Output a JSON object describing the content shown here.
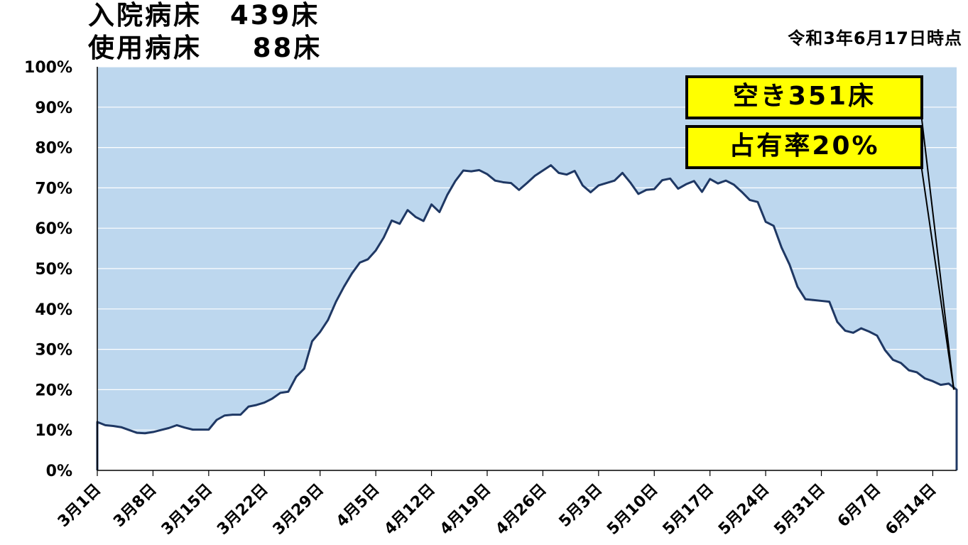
{
  "header": {
    "line1": "入院病床　439床",
    "line2": "使用病床　  88床",
    "as_of": "令和3年6月17日時点"
  },
  "callouts": {
    "free_beds": "空き351床",
    "occupancy": "占有率20%"
  },
  "colors": {
    "plot_bg": "#bdd7ee",
    "line": "#1f3864",
    "callout_bg": "#ffff00"
  },
  "chart_data": {
    "type": "area",
    "ylim": [
      0,
      100
    ],
    "y_unit": "%",
    "yticks": [
      "0%",
      "10%",
      "20%",
      "30%",
      "40%",
      "50%",
      "60%",
      "70%",
      "80%",
      "90%",
      "100%"
    ],
    "xticks": [
      "3月1日",
      "3月8日",
      "3月15日",
      "3月22日",
      "3月29日",
      "4月5日",
      "4月12日",
      "4月19日",
      "4月26日",
      "5月3日",
      "5月10日",
      "5月17日",
      "5月24日",
      "5月31日",
      "6月7日",
      "6月14日"
    ],
    "x_start": "3月1日",
    "x_end": "6月17日",
    "grid": true,
    "values": [
      12,
      11.2,
      11,
      10.7,
      10,
      9.3,
      9.2,
      9.5,
      10,
      10.5,
      11.2,
      10.6,
      10.1,
      10.1,
      10.1,
      12.5,
      13.6,
      13.8,
      13.8,
      15.8,
      16.2,
      16.8,
      17.8,
      19.2,
      19.5,
      23.2,
      25.2,
      32,
      34.3,
      37.3,
      41.8,
      45.5,
      48.8,
      51.5,
      52.3,
      54.5,
      57.7,
      61.9,
      61.1,
      64.5,
      62.8,
      61.8,
      65.9,
      64,
      68.3,
      71.7,
      74.3,
      74.1,
      74.4,
      73.4,
      71.8,
      71.4,
      71.2,
      69.5,
      71.2,
      73,
      74.3,
      75.6,
      73.7,
      73.3,
      74.2,
      70.6,
      68.9,
      70.6,
      71.2,
      71.8,
      73.7,
      71.3,
      68.5,
      69.5,
      69.7,
      71.9,
      72.3,
      69.8,
      70.9,
      71.7,
      69,
      72.2,
      71.1,
      71.8,
      70.8,
      69,
      67,
      66.5,
      61.6,
      60.6,
      55.2,
      51,
      45.5,
      42.4,
      42.2,
      42,
      41.8,
      36.8,
      34.6,
      34.1,
      35.2,
      34.4,
      33.4,
      29.8,
      27.4,
      26.6,
      24.8,
      24.3,
      22.8,
      22.1,
      21.2,
      21.5,
      20
    ]
  }
}
